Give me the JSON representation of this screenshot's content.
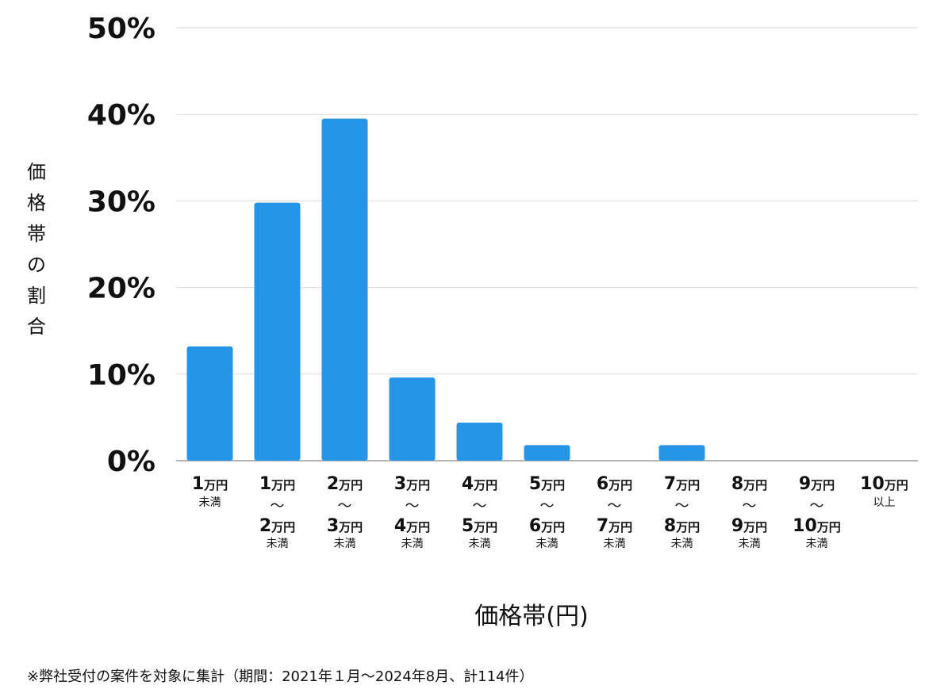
{
  "chart_data": {
    "type": "bar",
    "categories": [
      {
        "from": "1",
        "from_unit": "万円",
        "to": "",
        "to_unit": "",
        "suffix": "未満"
      },
      {
        "from": "1",
        "from_unit": "万円",
        "to": "2",
        "to_unit": "万円",
        "suffix": "未満"
      },
      {
        "from": "2",
        "from_unit": "万円",
        "to": "3",
        "to_unit": "万円",
        "suffix": "未満"
      },
      {
        "from": "3",
        "from_unit": "万円",
        "to": "4",
        "to_unit": "万円",
        "suffix": "未満"
      },
      {
        "from": "4",
        "from_unit": "万円",
        "to": "5",
        "to_unit": "万円",
        "suffix": "未満"
      },
      {
        "from": "5",
        "from_unit": "万円",
        "to": "6",
        "to_unit": "万円",
        "suffix": "未満"
      },
      {
        "from": "6",
        "from_unit": "万円",
        "to": "7",
        "to_unit": "万円",
        "suffix": "未満"
      },
      {
        "from": "7",
        "from_unit": "万円",
        "to": "8",
        "to_unit": "万円",
        "suffix": "未満"
      },
      {
        "from": "8",
        "from_unit": "万円",
        "to": "9",
        "to_unit": "万円",
        "suffix": "未満"
      },
      {
        "from": "9",
        "from_unit": "万円",
        "to": "10",
        "to_unit": "万円",
        "suffix": "未満"
      },
      {
        "from": "10",
        "from_unit": "万円",
        "to": "",
        "to_unit": "",
        "suffix": "以上"
      }
    ],
    "range_separator": "〜",
    "values": [
      13.2,
      29.8,
      39.5,
      9.6,
      4.4,
      1.8,
      0,
      1.8,
      0,
      0,
      0
    ],
    "ylabel": "価格帯の割合",
    "xlabel": "価格帯(円)",
    "yticks": [
      "0%",
      "10%",
      "20%",
      "30%",
      "40%",
      "50%"
    ],
    "ylim": [
      0,
      50
    ],
    "grid": true,
    "bar_color": "#2595e8",
    "grid_color": "#d9d9d9",
    "axis_color": "#9a9a9a"
  },
  "footnote": "※弊社受付の案件を対象に集計（期間：2021年１月〜2024年8月、計114件）"
}
